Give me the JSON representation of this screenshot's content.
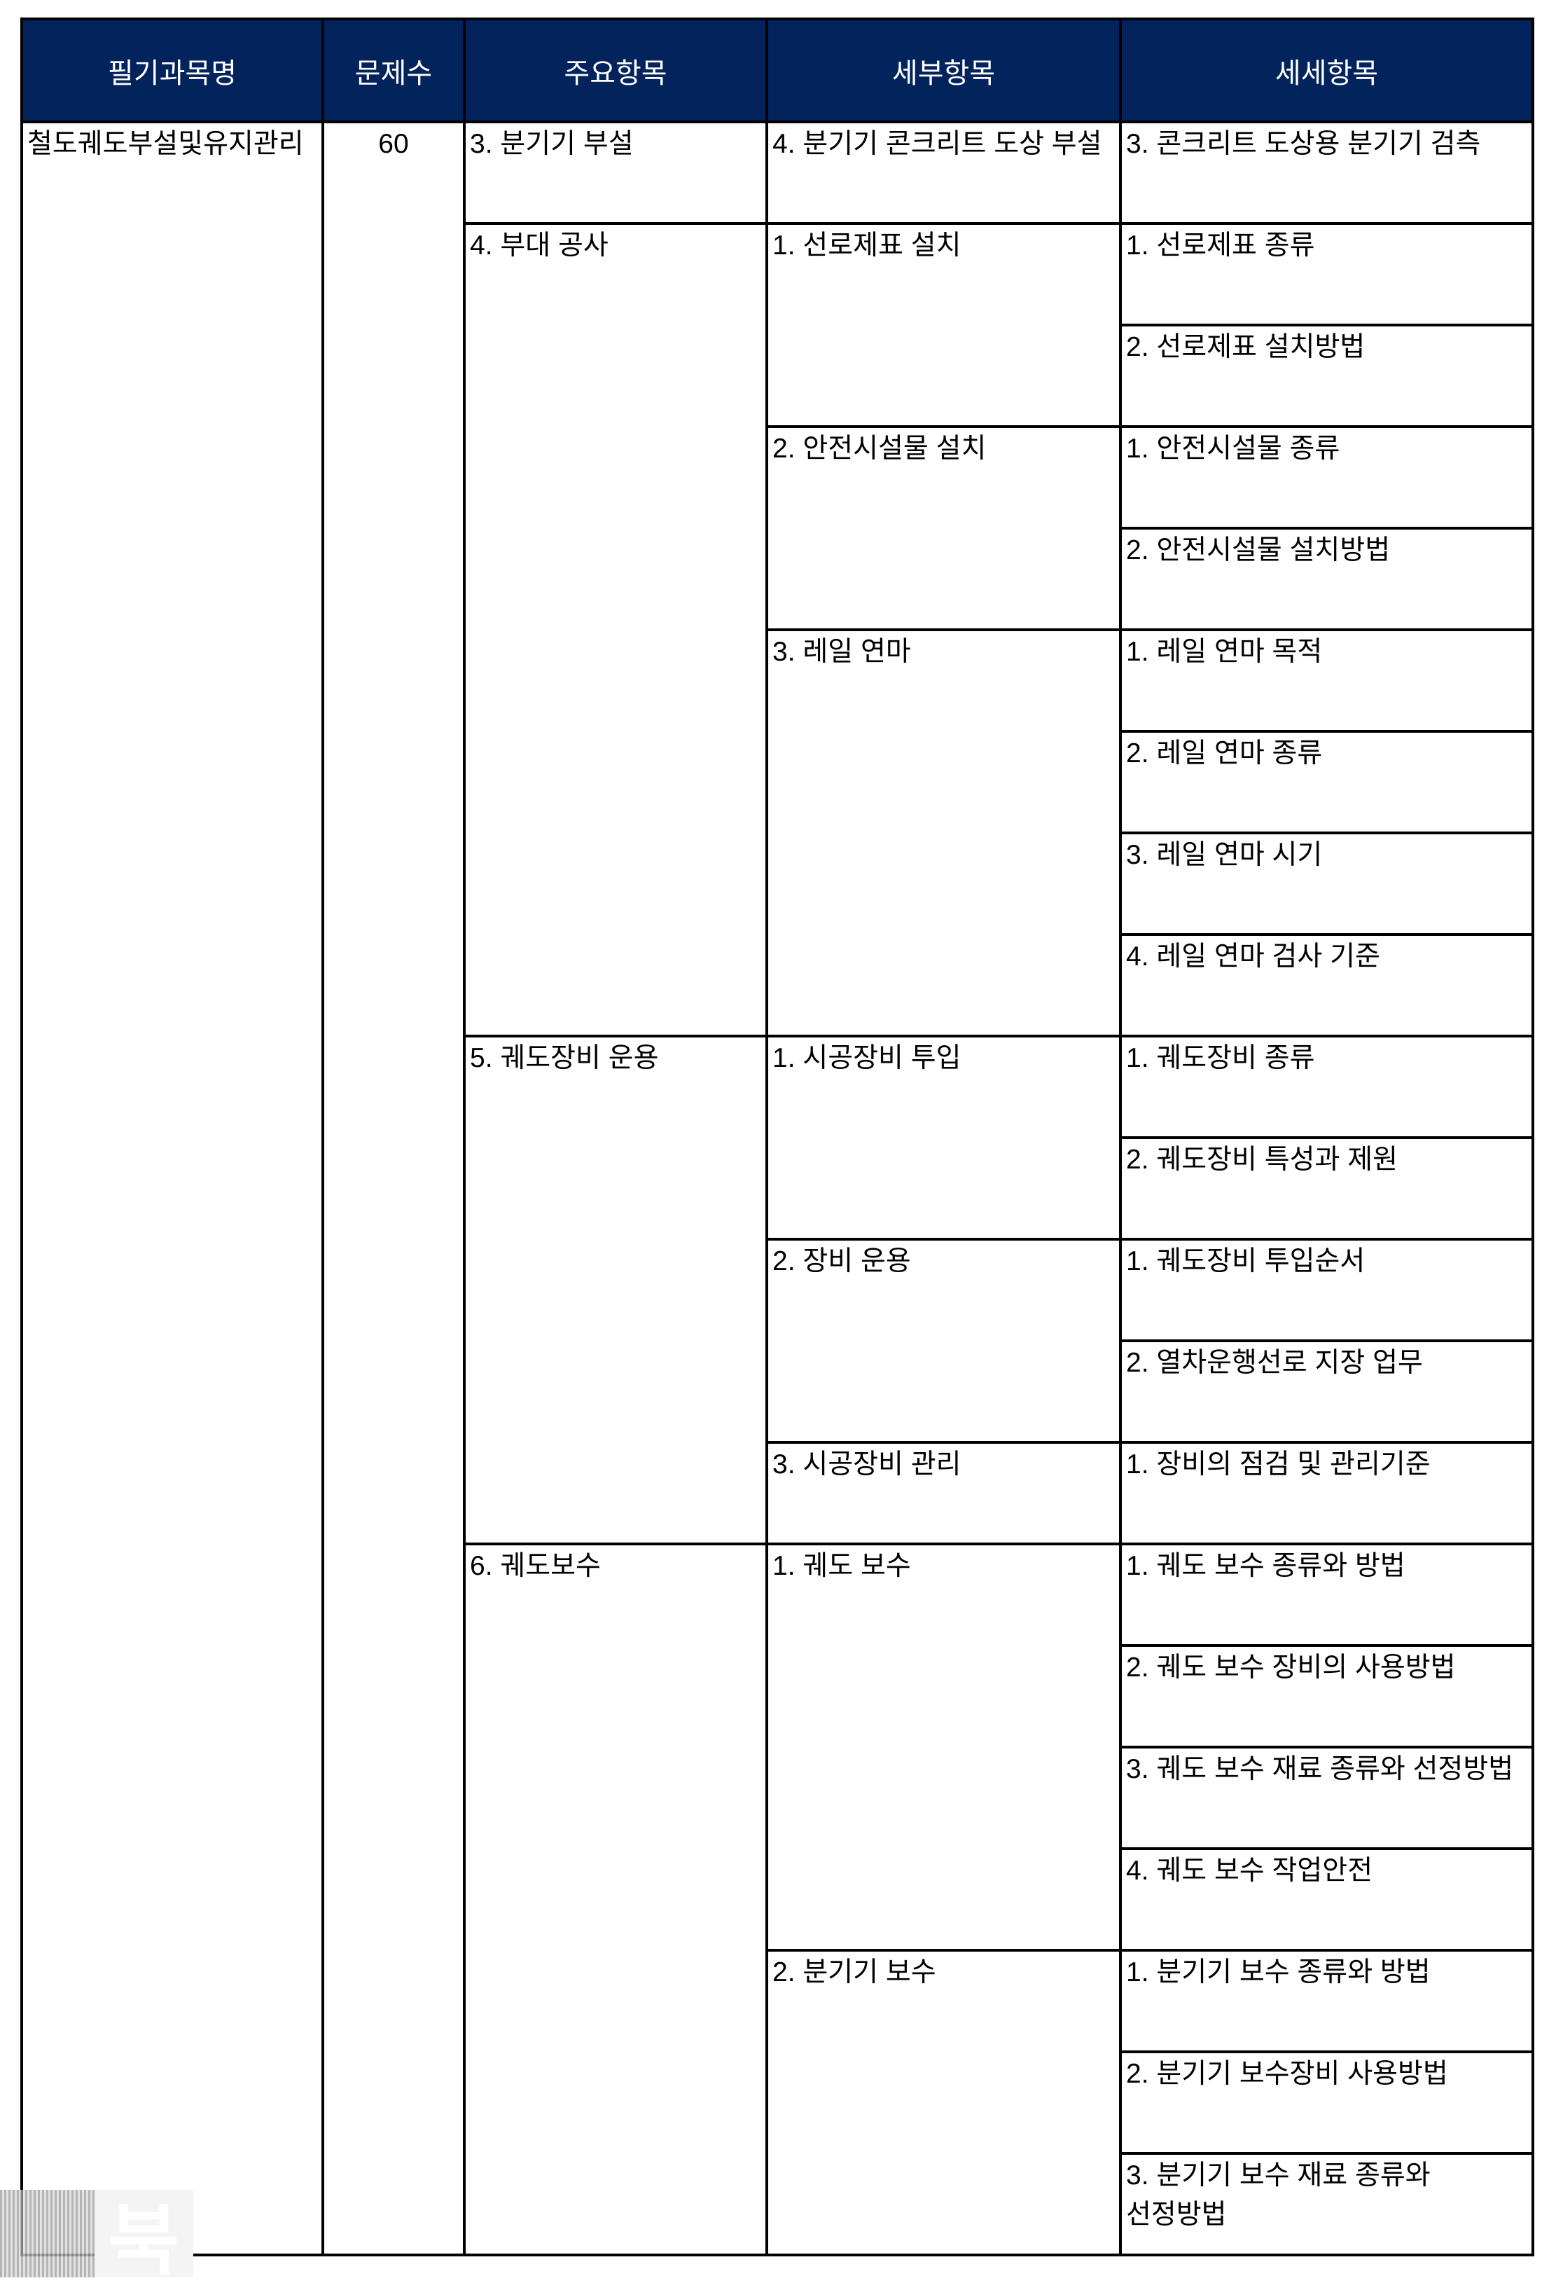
{
  "headers": [
    "필기과목명",
    "문제수",
    "주요항목",
    "세부항목",
    "세세항목"
  ],
  "subject": "철도궤도부설및유지관리",
  "question_count": "60",
  "main_items": [
    {
      "label": "3. 분기기 부설",
      "sub_items": [
        {
          "label": "4. 분기기 콘크리트 도상 부설",
          "details": [
            "3. 콘크리트 도상용 분기기 검측"
          ]
        }
      ]
    },
    {
      "label": "4. 부대 공사",
      "sub_items": [
        {
          "label": "1. 선로제표 설치",
          "details": [
            "1. 선로제표 종류",
            "2. 선로제표 설치방법"
          ]
        },
        {
          "label": "2. 안전시설물 설치",
          "details": [
            "1. 안전시설물 종류",
            "2. 안전시설물 설치방법"
          ]
        },
        {
          "label": "3. 레일 연마",
          "details": [
            "1. 레일 연마 목적",
            "2. 레일 연마 종류",
            "3. 레일 연마 시기",
            "4. 레일 연마 검사 기준"
          ]
        }
      ]
    },
    {
      "label": "5. 궤도장비 운용",
      "sub_items": [
        {
          "label": "1. 시공장비 투입",
          "details": [
            "1. 궤도장비 종류",
            "2. 궤도장비 특성과 제원"
          ]
        },
        {
          "label": "2. 장비 운용",
          "details": [
            "1. 궤도장비 투입순서",
            "2. 열차운행선로 지장 업무"
          ]
        },
        {
          "label": "3. 시공장비 관리",
          "details": [
            "1. 장비의 점검 및 관리기준"
          ]
        }
      ]
    },
    {
      "label": "6. 궤도보수",
      "sub_items": [
        {
          "label": "1. 궤도 보수",
          "details": [
            "1. 궤도 보수 종류와 방법",
            "2. 궤도 보수 장비의 사용방법",
            "3. 궤도 보수 재료 종류와 선정방법",
            "4. 궤도 보수 작업안전"
          ]
        },
        {
          "label": "2. 분기기 보수",
          "details": [
            "1. 분기기 보수 종류와 방법",
            "2. 분기기 보수장비 사용방법",
            "3. 분기기 보수 재료 종류와 선정방법"
          ]
        }
      ]
    }
  ],
  "watermark": "북",
  "colors": {
    "header_bg": "#03235c",
    "header_text": "#ffffff"
  }
}
